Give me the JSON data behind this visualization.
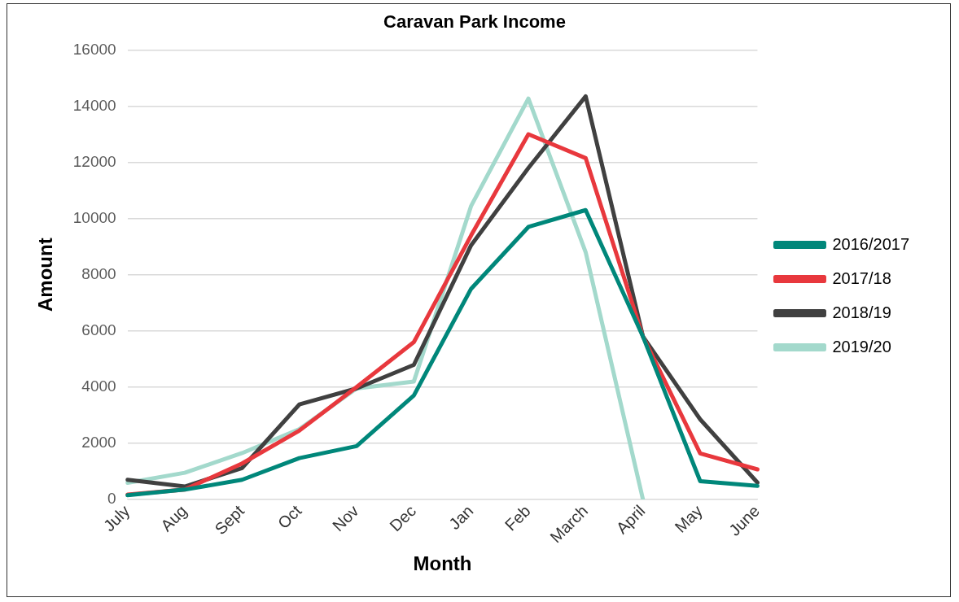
{
  "chart_data": {
    "type": "line",
    "title": "Caravan Park Income",
    "xlabel": "Month",
    "ylabel": "Amount",
    "categories": [
      "July",
      "Aug",
      "Sept",
      "Oct",
      "Nov",
      "Dec",
      "Jan",
      "Feb",
      "March",
      "April",
      "May",
      "June"
    ],
    "series": [
      {
        "name": "2016/2017",
        "color": "#00877a",
        "values": [
          150,
          350,
          700,
          1470,
          1900,
          3700,
          7500,
          9700,
          10300,
          5800,
          650,
          480
        ]
      },
      {
        "name": "2017/18",
        "color": "#e8383d",
        "values": [
          170,
          350,
          1280,
          2450,
          4000,
          5600,
          9400,
          13000,
          12150,
          5800,
          1640,
          1070
        ]
      },
      {
        "name": "2018/19",
        "color": "#404040",
        "values": [
          700,
          460,
          1120,
          3380,
          3950,
          4790,
          9050,
          11800,
          14350,
          5800,
          2850,
          600
        ]
      },
      {
        "name": "2019/20",
        "color": "#a3d9cc",
        "values": [
          590,
          950,
          1650,
          2500,
          3950,
          4200,
          10450,
          14270,
          8800,
          0,
          null,
          null
        ]
      }
    ],
    "ylim": [
      0,
      16000
    ],
    "yticks": [
      0,
      2000,
      4000,
      6000,
      8000,
      10000,
      12000,
      14000,
      16000
    ],
    "grid": "y",
    "legend": "right",
    "marker": "none",
    "line_style": "solid"
  }
}
